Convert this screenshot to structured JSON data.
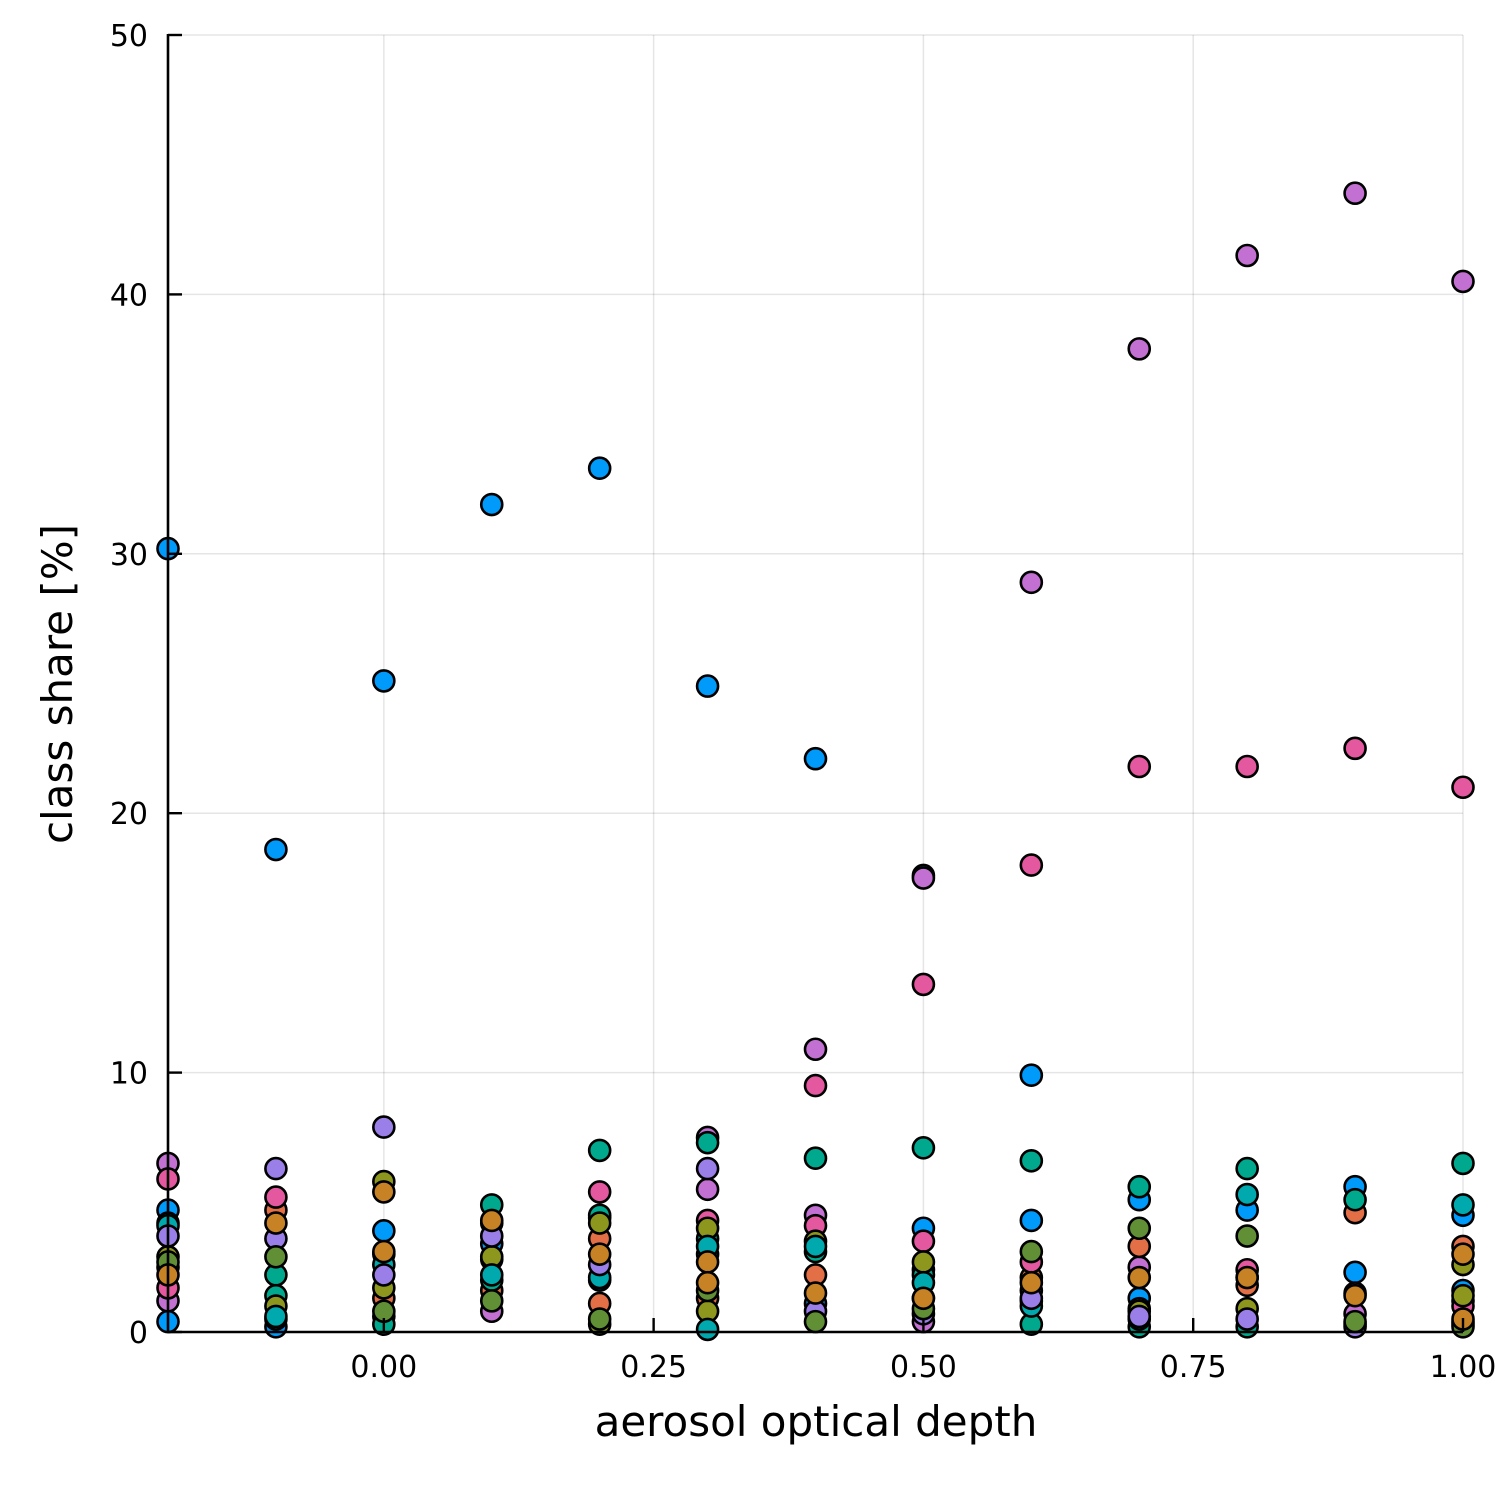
{
  "chart_data": {
    "type": "scatter",
    "title": "",
    "xlabel": "aerosol optical depth",
    "ylabel": "class share [%]",
    "xlim": [
      -0.2,
      1.0
    ],
    "ylim": [
      0,
      50
    ],
    "x_ticks": [
      0.0,
      0.25,
      0.5,
      0.75,
      1.0
    ],
    "x_tick_labels": [
      "0.00",
      "0.25",
      "0.50",
      "0.75",
      "1.00"
    ],
    "y_ticks": [
      0,
      10,
      20,
      30,
      40,
      50
    ],
    "y_tick_labels": [
      "0",
      "10",
      "20",
      "30",
      "40",
      "50"
    ],
    "grid": true,
    "legend": "none",
    "series": [
      {
        "color": "#009AFA",
        "points": [
          [
            -0.2,
            30.2
          ],
          [
            -0.2,
            4.7
          ],
          [
            -0.2,
            0.4
          ],
          [
            -0.1,
            18.6
          ],
          [
            -0.1,
            0.2
          ],
          [
            0.0,
            25.1
          ],
          [
            0.0,
            3.9
          ],
          [
            0.1,
            31.9
          ],
          [
            0.1,
            3.4
          ],
          [
            0.2,
            33.3
          ],
          [
            0.2,
            2.0
          ],
          [
            0.3,
            24.9
          ],
          [
            0.3,
            3.0
          ],
          [
            0.4,
            22.1
          ],
          [
            0.4,
            1.1
          ],
          [
            0.5,
            17.6
          ],
          [
            0.5,
            4.0
          ],
          [
            0.6,
            9.9
          ],
          [
            0.6,
            4.3
          ],
          [
            0.7,
            1.3
          ],
          [
            0.7,
            5.1
          ],
          [
            0.8,
            4.7
          ],
          [
            0.9,
            2.3
          ],
          [
            0.9,
            5.6
          ],
          [
            1.0,
            4.5
          ],
          [
            1.0,
            1.6
          ]
        ]
      },
      {
        "color": "#C271D2",
        "points": [
          [
            -0.2,
            6.5
          ],
          [
            -0.2,
            1.2
          ],
          [
            -0.1,
            0.5
          ],
          [
            0.0,
            3.0
          ],
          [
            0.1,
            0.8
          ],
          [
            0.2,
            4.4
          ],
          [
            0.3,
            5.5
          ],
          [
            0.3,
            7.5
          ],
          [
            0.4,
            10.9
          ],
          [
            0.4,
            4.5
          ],
          [
            0.5,
            17.5
          ],
          [
            0.5,
            0.4
          ],
          [
            0.6,
            28.9
          ],
          [
            0.6,
            1.2
          ],
          [
            0.7,
            37.9
          ],
          [
            0.7,
            2.5
          ],
          [
            0.8,
            41.5
          ],
          [
            0.8,
            2.1
          ],
          [
            0.9,
            43.9
          ],
          [
            0.9,
            0.7
          ],
          [
            1.0,
            40.5
          ],
          [
            1.0,
            1.2
          ]
        ]
      },
      {
        "color": "#E26F46",
        "points": [
          [
            -0.2,
            2.5
          ],
          [
            -0.1,
            4.7
          ],
          [
            0.0,
            1.3
          ],
          [
            0.1,
            4.2
          ],
          [
            0.1,
            1.6
          ],
          [
            0.2,
            1.1
          ],
          [
            0.2,
            3.6
          ],
          [
            0.3,
            1.3
          ],
          [
            0.4,
            2.2
          ],
          [
            0.5,
            2.4
          ],
          [
            0.6,
            2.1
          ],
          [
            0.7,
            3.3
          ],
          [
            0.8,
            1.8
          ],
          [
            0.9,
            4.6
          ],
          [
            1.0,
            3.3
          ]
        ]
      },
      {
        "color": "#E4589F",
        "points": [
          [
            -0.2,
            5.9
          ],
          [
            -0.2,
            1.7
          ],
          [
            -0.1,
            5.2
          ],
          [
            0.0,
            0.6
          ],
          [
            0.1,
            2.8
          ],
          [
            0.2,
            5.4
          ],
          [
            0.3,
            4.3
          ],
          [
            0.4,
            9.5
          ],
          [
            0.4,
            4.1
          ],
          [
            0.5,
            13.4
          ],
          [
            0.5,
            3.5
          ],
          [
            0.6,
            18.0
          ],
          [
            0.6,
            2.7
          ],
          [
            0.7,
            21.8
          ],
          [
            0.7,
            0.9
          ],
          [
            0.8,
            21.8
          ],
          [
            0.8,
            2.4
          ],
          [
            0.9,
            22.5
          ],
          [
            0.9,
            1.5
          ],
          [
            1.0,
            21.0
          ],
          [
            1.0,
            1.0
          ]
        ]
      },
      {
        "color": "#00A98D",
        "points": [
          [
            -0.2,
            4.2
          ],
          [
            -0.1,
            2.2
          ],
          [
            -0.1,
            1.4
          ],
          [
            0.0,
            0.3
          ],
          [
            0.1,
            4.9
          ],
          [
            0.1,
            2.0
          ],
          [
            0.2,
            7.0
          ],
          [
            0.2,
            4.5
          ],
          [
            0.3,
            7.3
          ],
          [
            0.3,
            3.6
          ],
          [
            0.4,
            6.7
          ],
          [
            0.4,
            3.1
          ],
          [
            0.5,
            7.1
          ],
          [
            0.5,
            2.2
          ],
          [
            0.6,
            6.6
          ],
          [
            0.6,
            0.3
          ],
          [
            0.7,
            5.6
          ],
          [
            0.7,
            0.2
          ],
          [
            0.8,
            6.3
          ],
          [
            0.8,
            0.2
          ],
          [
            0.9,
            5.1
          ],
          [
            1.0,
            6.5
          ],
          [
            1.0,
            0.3
          ]
        ]
      },
      {
        "color": "#8E971D",
        "points": [
          [
            -0.2,
            2.9
          ],
          [
            -0.1,
            1.0
          ],
          [
            0.0,
            5.8
          ],
          [
            0.0,
            1.7
          ],
          [
            0.1,
            2.9
          ],
          [
            0.2,
            4.2
          ],
          [
            0.2,
            0.3
          ],
          [
            0.3,
            4.0
          ],
          [
            0.3,
            0.8
          ],
          [
            0.4,
            3.5
          ],
          [
            0.5,
            2.7
          ],
          [
            0.5,
            1.3
          ],
          [
            0.6,
            1.6
          ],
          [
            0.7,
            0.8
          ],
          [
            0.8,
            0.9
          ],
          [
            0.9,
            0.3
          ],
          [
            1.0,
            2.6
          ],
          [
            1.0,
            1.4
          ]
        ]
      },
      {
        "color": "#00A9AD",
        "points": [
          [
            -0.2,
            4.1
          ],
          [
            -0.1,
            0.6
          ],
          [
            0.0,
            2.6
          ],
          [
            0.1,
            2.2
          ],
          [
            0.2,
            2.1
          ],
          [
            0.3,
            3.3
          ],
          [
            0.3,
            0.1
          ],
          [
            0.4,
            3.3
          ],
          [
            0.5,
            1.9
          ],
          [
            0.6,
            1.0
          ],
          [
            0.7,
            0.5
          ],
          [
            0.8,
            5.3
          ],
          [
            1.0,
            4.9
          ]
        ]
      },
      {
        "color": "#9B7FE8",
        "points": [
          [
            -0.2,
            3.7
          ],
          [
            -0.1,
            6.3
          ],
          [
            -0.1,
            3.6
          ],
          [
            0.0,
            7.9
          ],
          [
            0.0,
            2.2
          ],
          [
            0.1,
            3.7
          ],
          [
            0.2,
            2.6
          ],
          [
            0.3,
            6.3
          ],
          [
            0.4,
            0.8
          ],
          [
            0.5,
            0.7
          ],
          [
            0.6,
            1.3
          ],
          [
            0.7,
            0.6
          ],
          [
            0.8,
            0.5
          ],
          [
            0.9,
            0.2
          ],
          [
            1.0,
            0.4
          ]
        ]
      },
      {
        "color": "#618F36",
        "points": [
          [
            -0.2,
            2.7
          ],
          [
            -0.1,
            2.9
          ],
          [
            0.0,
            0.8
          ],
          [
            0.1,
            1.2
          ],
          [
            0.2,
            0.5
          ],
          [
            0.3,
            1.6
          ],
          [
            0.4,
            0.4
          ],
          [
            0.5,
            0.9
          ],
          [
            0.6,
            3.1
          ],
          [
            0.7,
            4.0
          ],
          [
            0.8,
            3.7
          ],
          [
            0.9,
            0.4
          ],
          [
            1.0,
            0.2
          ]
        ]
      },
      {
        "color": "#C68225",
        "points": [
          [
            -0.2,
            2.2
          ],
          [
            -0.1,
            4.2
          ],
          [
            0.0,
            5.4
          ],
          [
            0.0,
            3.1
          ],
          [
            0.1,
            4.3
          ],
          [
            0.2,
            3.0
          ],
          [
            0.3,
            2.7
          ],
          [
            0.3,
            1.9
          ],
          [
            0.4,
            1.5
          ],
          [
            0.5,
            1.3
          ],
          [
            0.6,
            1.9
          ],
          [
            0.7,
            2.1
          ],
          [
            0.8,
            2.1
          ],
          [
            0.9,
            1.4
          ],
          [
            1.0,
            3.0
          ],
          [
            1.0,
            0.5
          ]
        ]
      }
    ]
  }
}
